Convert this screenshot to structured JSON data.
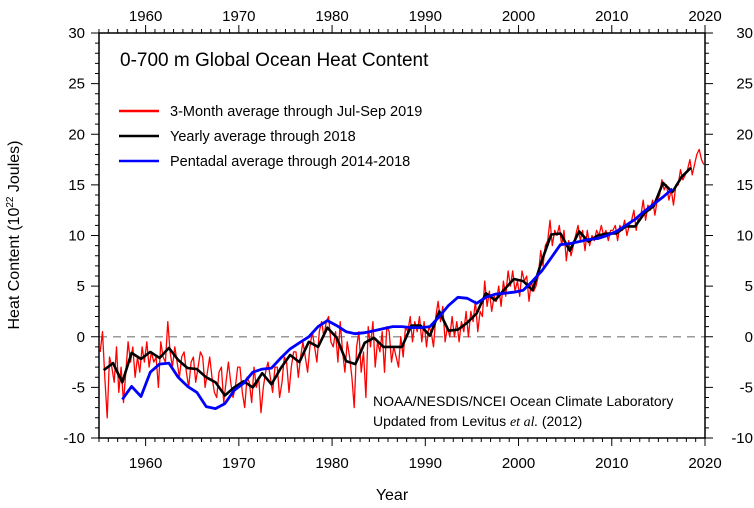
{
  "chart_data": {
    "type": "line",
    "title": "0-700 m Global Ocean Heat Content",
    "xlabel": "Year",
    "ylabel": "Heat Content (10",
    "ylabel_superscript": "22",
    "ylabel_suffix": " Joules)",
    "xlim": [
      1955,
      2020
    ],
    "ylim": [
      -10,
      30
    ],
    "x_ticks": [
      1960,
      1970,
      1980,
      1990,
      2000,
      2010,
      2020
    ],
    "y_ticks": [
      -10,
      -5,
      0,
      5,
      10,
      15,
      20,
      25,
      30
    ],
    "x_tick_labels": [
      "1960",
      "1970",
      "1980",
      "1990",
      "2000",
      "2010",
      "2020"
    ],
    "y_tick_labels": [
      "-10",
      "-5",
      "0",
      "5",
      "10",
      "15",
      "20",
      "25",
      "30"
    ],
    "zero_line": "dashed gray",
    "grid": false,
    "legend_position": "top-left",
    "annotation_line1": "NOAA/NESDIS/NCEI Ocean Climate Laboratory",
    "annotation_line2_prefix": "Updated from Levitus ",
    "annotation_line2_italic": "et al.",
    "annotation_line2_suffix": " (2012)",
    "series": [
      {
        "name": "3-Month average through Jul-Sep 2019",
        "color": "#ff0000",
        "x_start": 1955.125,
        "x_step": 0.25,
        "values": [
          -1.5,
          0.5,
          -4.0,
          -8.0,
          -2.0,
          -3.0,
          -4.5,
          -1.0,
          -5.5,
          -3.0,
          -6.5,
          -3.5,
          -0.5,
          -2.5,
          -1.0,
          -4.0,
          -2.0,
          -3.5,
          -1.0,
          -2.5,
          -0.5,
          -3.0,
          -1.5,
          -2.5,
          -2.0,
          -5.0,
          -0.5,
          -2.0,
          -2.5,
          1.5,
          -1.5,
          -3.0,
          -1.0,
          -2.5,
          -4.0,
          -2.0,
          -1.5,
          -3.5,
          -5.0,
          -2.5,
          -2.0,
          -4.5,
          -3.0,
          -1.5,
          -2.0,
          -5.0,
          -3.5,
          -2.0,
          -4.0,
          -5.5,
          -6.0,
          -3.5,
          -3.0,
          -6.5,
          -4.5,
          -2.5,
          -4.5,
          -6.0,
          -5.0,
          -3.0,
          -3.0,
          -5.5,
          -7.0,
          -4.0,
          -4.5,
          -6.5,
          -3.0,
          -5.0,
          -4.0,
          -7.5,
          -5.0,
          -3.5,
          -2.5,
          -4.0,
          -5.5,
          -3.0,
          -3.0,
          -6.0,
          -4.5,
          -2.0,
          -2.5,
          -5.5,
          -3.0,
          -1.5,
          -1.5,
          -4.0,
          -2.0,
          -0.5,
          -2.0,
          -3.5,
          -1.0,
          0.5,
          -1.0,
          -2.5,
          0.5,
          1.5,
          0.0,
          1.5,
          2.0,
          -0.5,
          -1.0,
          0.5,
          -2.5,
          1.5,
          -1.5,
          -3.5,
          -0.5,
          -2.0,
          -4.0,
          -7.0,
          -1.0,
          0.5,
          -3.5,
          -1.5,
          -6.0,
          1.0,
          -1.0,
          1.5,
          -3.0,
          -0.5,
          -1.5,
          0.5,
          -3.5,
          1.0,
          0.5,
          -2.5,
          -1.0,
          -2.0,
          -3.0,
          0.0,
          -2.0,
          1.0,
          0.5,
          2.0,
          -0.5,
          1.5,
          0.5,
          2.0,
          -0.5,
          1.5,
          -1.0,
          1.0,
          0.5,
          -1.0,
          2.0,
          3.5,
          1.5,
          3.0,
          -0.5,
          1.0,
          0.0,
          2.0,
          0.0,
          1.5,
          -0.5,
          1.5,
          0.5,
          2.5,
          0.0,
          2.5,
          1.5,
          3.5,
          0.5,
          2.5,
          2.0,
          5.5,
          3.0,
          4.5,
          2.5,
          4.0,
          3.5,
          5.0,
          3.0,
          5.5,
          4.0,
          6.5,
          5.0,
          6.5,
          4.5,
          5.5,
          4.0,
          6.5,
          5.5,
          6.0,
          3.5,
          5.5,
          4.5,
          5.0,
          6.0,
          8.5,
          7.0,
          9.0,
          9.5,
          11.5,
          9.0,
          10.5,
          10.0,
          11.0,
          9.0,
          10.5,
          7.5,
          9.5,
          8.0,
          9.0,
          10.0,
          11.0,
          9.5,
          10.5,
          8.5,
          10.5,
          9.0,
          10.0,
          9.5,
          10.5,
          10.0,
          11.0,
          10.0,
          10.5,
          9.5,
          10.5,
          10.5,
          11.0,
          9.5,
          11.0,
          10.5,
          11.5,
          10.0,
          11.0,
          11.5,
          12.5,
          10.5,
          12.0,
          12.0,
          13.5,
          11.5,
          13.0,
          12.5,
          13.5,
          12.0,
          13.5,
          14.0,
          15.5,
          14.5,
          15.0,
          13.5,
          14.5,
          13.0,
          15.0,
          15.0,
          16.5,
          15.5,
          16.0,
          16.5,
          17.5,
          16.0,
          17.0,
          18.0,
          18.5,
          17.5,
          17.0
        ]
      },
      {
        "name": "Yearly average through 2018",
        "color": "#000000",
        "x": [
          1955.5,
          1956.5,
          1957.5,
          1958.5,
          1959.5,
          1960.5,
          1961.5,
          1962.5,
          1963.5,
          1964.5,
          1965.5,
          1966.5,
          1967.5,
          1968.5,
          1969.5,
          1970.5,
          1971.5,
          1972.5,
          1973.5,
          1974.5,
          1975.5,
          1976.5,
          1977.5,
          1978.5,
          1979.5,
          1980.5,
          1981.5,
          1982.5,
          1983.5,
          1984.5,
          1985.5,
          1986.5,
          1987.5,
          1988.5,
          1989.5,
          1990.5,
          1991.5,
          1992.5,
          1993.5,
          1994.5,
          1995.5,
          1996.5,
          1997.5,
          1998.5,
          1999.5,
          2000.5,
          2001.5,
          2002.5,
          2003.5,
          2004.5,
          2005.5,
          2006.5,
          2007.5,
          2008.5,
          2009.5,
          2010.5,
          2011.5,
          2012.5,
          2013.5,
          2014.5,
          2015.5,
          2016.5,
          2017.5,
          2018.5
        ],
        "values": [
          -3.3,
          -2.6,
          -4.5,
          -1.6,
          -2.2,
          -1.5,
          -2.1,
          -1.1,
          -2.3,
          -3.1,
          -3.2,
          -4.0,
          -4.5,
          -5.8,
          -5.0,
          -4.4,
          -5.0,
          -3.6,
          -4.7,
          -3.1,
          -1.8,
          -2.5,
          -0.5,
          -1.0,
          0.9,
          -0.1,
          -2.4,
          -2.7,
          -0.6,
          -0.1,
          -1.0,
          -1.0,
          -1.0,
          1.1,
          1.1,
          0.1,
          2.5,
          0.6,
          0.7,
          1.4,
          2.3,
          4.3,
          3.6,
          4.7,
          5.7,
          5.5,
          4.6,
          7.5,
          10.1,
          10.2,
          8.5,
          10.4,
          9.4,
          10.0,
          10.2,
          10.2,
          10.9,
          10.9,
          12.2,
          12.9,
          15.2,
          14.3,
          15.8,
          16.7
        ]
      },
      {
        "name": "Pentadal average through 2014-2018",
        "color": "#0000ff",
        "x": [
          1957.5,
          1958.5,
          1959.5,
          1960.5,
          1961.5,
          1962.5,
          1963.5,
          1964.5,
          1965.5,
          1966.5,
          1967.5,
          1968.5,
          1969.5,
          1970.5,
          1971.5,
          1972.5,
          1973.5,
          1974.5,
          1975.5,
          1976.5,
          1977.5,
          1978.5,
          1979.5,
          1980.5,
          1981.5,
          1982.5,
          1983.5,
          1984.5,
          1985.5,
          1986.5,
          1987.5,
          1988.5,
          1989.5,
          1990.5,
          1991.5,
          1992.5,
          1993.5,
          1994.5,
          1995.5,
          1996.5,
          1997.5,
          1998.5,
          1999.5,
          2000.5,
          2001.5,
          2002.5,
          2003.5,
          2004.5,
          2005.5,
          2006.5,
          2007.5,
          2008.5,
          2009.5,
          2010.5,
          2011.5,
          2012.5,
          2013.5,
          2014.5,
          2015.5,
          2016.5
        ],
        "values": [
          -6.2,
          -4.9,
          -5.9,
          -3.5,
          -2.7,
          -2.6,
          -4.0,
          -4.9,
          -5.5,
          -6.9,
          -7.1,
          -6.6,
          -5.3,
          -4.6,
          -3.5,
          -3.2,
          -3.1,
          -2.1,
          -1.2,
          -0.6,
          0.0,
          1.0,
          1.6,
          1.1,
          0.5,
          0.3,
          0.4,
          0.6,
          0.8,
          1.0,
          1.0,
          0.9,
          0.9,
          1.0,
          2.0,
          3.1,
          3.9,
          3.8,
          3.3,
          3.9,
          4.2,
          4.3,
          4.4,
          4.6,
          5.5,
          6.5,
          7.8,
          9.1,
          9.2,
          9.4,
          9.6,
          9.7,
          10.0,
          10.4,
          11.0,
          11.6,
          12.4,
          13.1,
          13.8,
          14.6
        ]
      }
    ]
  }
}
